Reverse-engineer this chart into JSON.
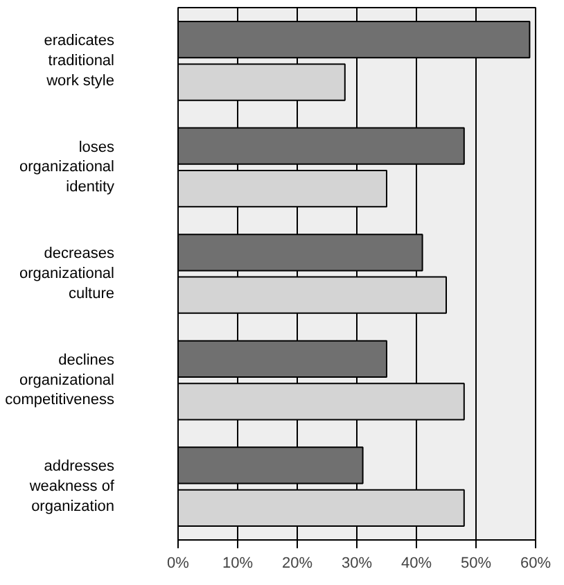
{
  "chart_data": {
    "type": "bar",
    "orientation": "horizontal",
    "categories": [
      "eradicates traditional work style",
      "loses organizational identity",
      "decreases organizational culture",
      "declines organizational competitiveness",
      "addresses weakness of organization"
    ],
    "series": [
      {
        "color": "#707070",
        "values": [
          59,
          48,
          41,
          35,
          31
        ]
      },
      {
        "color": "#d4d4d4",
        "values": [
          28,
          35,
          45,
          48,
          48
        ]
      }
    ],
    "xlim": [
      0,
      60
    ],
    "xticks": [
      {
        "value": 0,
        "label": "0%"
      },
      {
        "value": 10,
        "label": "10%"
      },
      {
        "value": 20,
        "label": "20%"
      },
      {
        "value": 30,
        "label": "30%"
      },
      {
        "value": 40,
        "label": "40%"
      },
      {
        "value": 50,
        "label": "50%"
      },
      {
        "value": 60,
        "label": "60%"
      }
    ],
    "grid": "x"
  }
}
